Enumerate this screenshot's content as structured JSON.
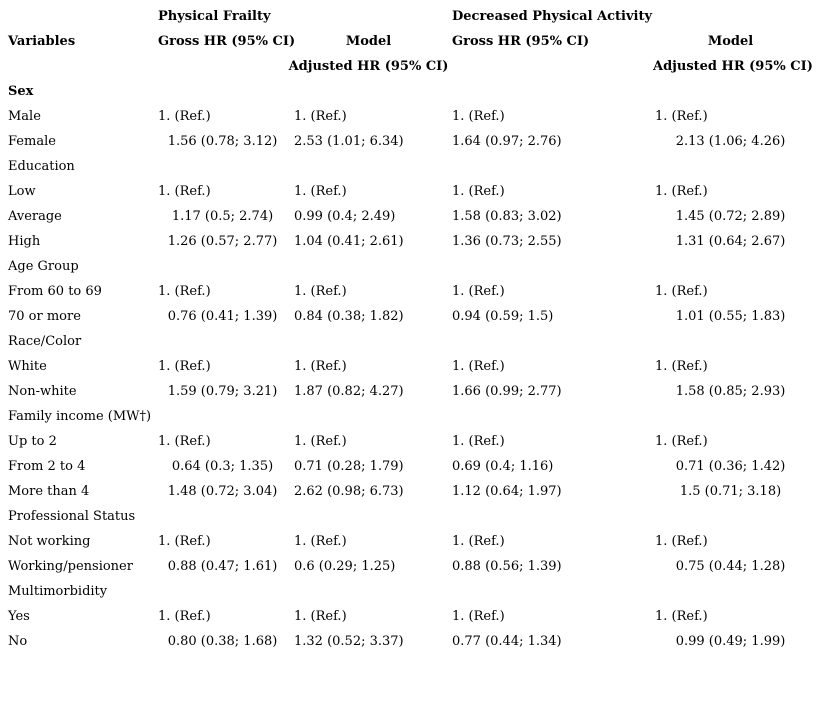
{
  "colors": {
    "text": "#000000",
    "background": "#ffffff"
  },
  "table": {
    "header": {
      "group1": "Physical Frailty",
      "group2": "Decreased Physical Activity",
      "variables_label": "Variables",
      "gross_hr_label": "Gross HR (95% CI)",
      "model_label": "Model",
      "adjusted_hr_label": "Adjusted HR (95% CI)"
    },
    "ref_text": "1. (Ref.)",
    "sections": [
      {
        "title": "Sex",
        "title_bold": true,
        "rows": [
          {
            "label": "Male",
            "ref": true,
            "values": [
              "1. (Ref.)",
              "1. (Ref.)",
              "1. (Ref.)",
              "1. (Ref.)"
            ]
          },
          {
            "label": "Female",
            "ref": false,
            "values": [
              "1.56 (0.78; 3.12)",
              "2.53 (1.01; 6.34)",
              "1.64 (0.97; 2.76)",
              "2.13 (1.06; 4.26)"
            ]
          }
        ]
      },
      {
        "title": "Education",
        "title_bold": false,
        "rows": [
          {
            "label": "Low",
            "ref": true,
            "values": [
              "1. (Ref.)",
              "1. (Ref.)",
              "1. (Ref.)",
              "1. (Ref.)"
            ]
          },
          {
            "label": "Average",
            "ref": false,
            "values": [
              "1.17 (0.5; 2.74)",
              "0.99 (0.4; 2.49)",
              "1.58 (0.83; 3.02)",
              "1.45 (0.72; 2.89)"
            ]
          },
          {
            "label": "High",
            "ref": false,
            "values": [
              "1.26 (0.57; 2.77)",
              "1.04 (0.41; 2.61)",
              "1.36 (0.73; 2.55)",
              "1.31 (0.64; 2.67)"
            ]
          }
        ]
      },
      {
        "title": "Age Group",
        "title_bold": false,
        "rows": [
          {
            "label": "From 60 to 69",
            "ref": true,
            "values": [
              "1. (Ref.)",
              "1. (Ref.)",
              "1. (Ref.)",
              "1. (Ref.)"
            ]
          },
          {
            "label": "70 or more",
            "ref": false,
            "values": [
              "0.76 (0.41; 1.39)",
              "0.84 (0.38; 1.82)",
              "0.94 (0.59; 1.5)",
              "1.01 (0.55; 1.83)"
            ]
          }
        ]
      },
      {
        "title": "Race/Color",
        "title_bold": false,
        "rows": [
          {
            "label": "White",
            "ref": true,
            "values": [
              "1. (Ref.)",
              "1. (Ref.)",
              "1. (Ref.)",
              "1. (Ref.)"
            ]
          },
          {
            "label": "Non-white",
            "ref": false,
            "values": [
              "1.59 (0.79; 3.21)",
              "1.87 (0.82; 4.27)",
              "1.66 (0.99; 2.77)",
              "1.58 (0.85; 2.93)"
            ]
          }
        ]
      },
      {
        "title": "Family income (MW†)",
        "title_bold": false,
        "rows": [
          {
            "label": "Up to 2",
            "ref": true,
            "values": [
              "1. (Ref.)",
              "1. (Ref.)",
              "1. (Ref.)",
              "1. (Ref.)"
            ]
          },
          {
            "label": "From 2 to 4",
            "ref": false,
            "values": [
              "0.64 (0.3; 1.35)",
              "0.71 (0.28; 1.79)",
              "0.69 (0.4; 1.16)",
              "0.71 (0.36; 1.42)"
            ]
          },
          {
            "label": "More than 4",
            "ref": false,
            "values": [
              "1.48 (0.72; 3.04)",
              "2.62 (0.98; 6.73)",
              "1.12 (0.64; 1.97)",
              "1.5 (0.71; 3.18)"
            ]
          }
        ]
      },
      {
        "title": "Professional Status",
        "title_bold": false,
        "rows": [
          {
            "label": "Not working",
            "ref": true,
            "values": [
              "1. (Ref.)",
              "1. (Ref.)",
              "1. (Ref.)",
              "1. (Ref.)"
            ]
          },
          {
            "label": "Working/pensioner",
            "ref": false,
            "values": [
              "0.88 (0.47; 1.61)",
              "0.6 (0.29; 1.25)",
              "0.88 (0.56; 1.39)",
              "0.75 (0.44; 1.28)"
            ]
          }
        ]
      },
      {
        "title": "Multimorbidity",
        "title_bold": false,
        "rows": [
          {
            "label": "Yes",
            "ref": true,
            "values": [
              "1. (Ref.)",
              "1. (Ref.)",
              "1. (Ref.)",
              "1. (Ref.)"
            ]
          },
          {
            "label": "No",
            "ref": false,
            "values": [
              "0.80 (0.38; 1.68)",
              "1.32 (0.52; 3.37)",
              "0.77 (0.44; 1.34)",
              "0.99 (0.49; 1.99)"
            ]
          }
        ]
      }
    ]
  }
}
